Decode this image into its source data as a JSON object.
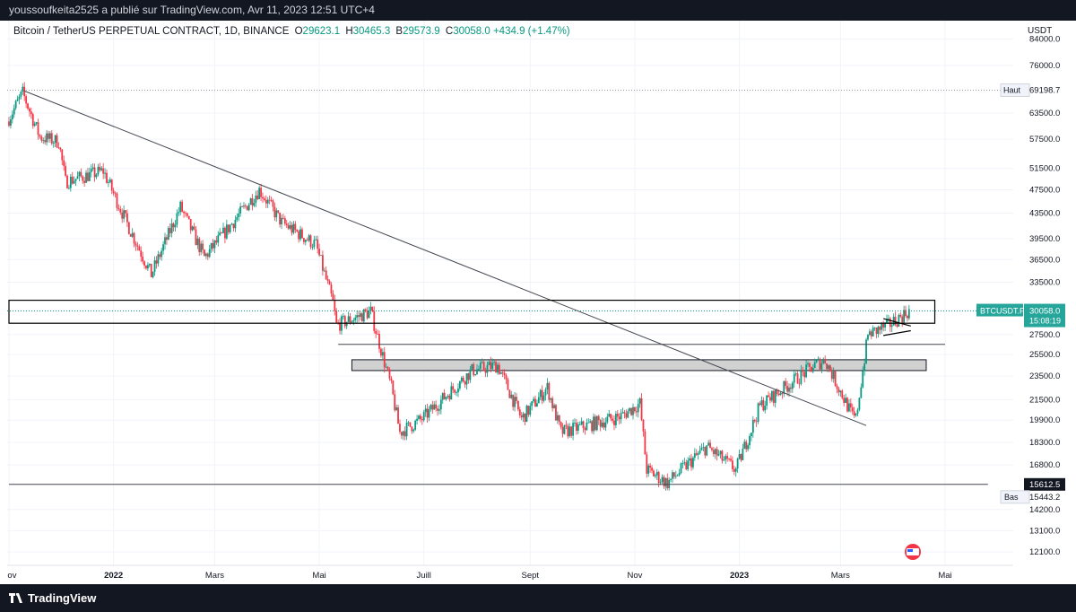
{
  "header": {
    "publisher": "youssoufkeita2525 a publié sur TradingView.com, Avr 11, 2023 12:51 UTC+4"
  },
  "legend": {
    "symbol": "Bitcoin / TetherUS PERPETUAL CONTRACT, 1D, BINANCE",
    "o_label": "O",
    "o": "29623.1",
    "h_label": "H",
    "h": "30465.3",
    "l_label": "B",
    "l": "29573.9",
    "c_label": "C",
    "c": "30058.0",
    "change": "+434.9 (+1.47%)"
  },
  "footer": {
    "brand": "TradingView"
  },
  "chart_data": {
    "type": "candlestick",
    "currency": "USDT",
    "y_scale": "log",
    "ylim": [
      11500,
      90000
    ],
    "y_ticks": [
      "84000.0",
      "76000.0",
      "63500.0",
      "57500.0",
      "51500.0",
      "47500.0",
      "43500.0",
      "39500.0",
      "36500.0",
      "33500.0",
      "27500.0",
      "25500.0",
      "23500.0",
      "21500.0",
      "19900.0",
      "18300.0",
      "16800.0",
      "14200.0",
      "13100.0",
      "12100.0"
    ],
    "x_ticks": [
      {
        "label": "Nov",
        "date": "2021-11-01"
      },
      {
        "label": "2022",
        "date": "2022-01-01"
      },
      {
        "label": "Mars",
        "date": "2022-03-01"
      },
      {
        "label": "Mai",
        "date": "2022-05-01"
      },
      {
        "label": "Juill",
        "date": "2022-07-01"
      },
      {
        "label": "Sept",
        "date": "2022-09-01"
      },
      {
        "label": "Nov",
        "date": "2022-11-01"
      },
      {
        "label": "2023",
        "date": "2023-01-01"
      },
      {
        "label": "Mars",
        "date": "2023-03-01"
      },
      {
        "label": "Mai",
        "date": "2023-05-01"
      }
    ],
    "price_labels": {
      "high": {
        "tag": "Haut",
        "value": "69198.7"
      },
      "current": {
        "tag": "BTCUSDT.P",
        "value": "30058.0",
        "countdown": "15:08:19"
      },
      "line_level": {
        "value": "15612.5"
      },
      "low": {
        "tag": "Bas",
        "value": "15443.2"
      }
    },
    "colors": {
      "up": "#089981",
      "down": "#f23645",
      "grid": "#f0f3fa",
      "text": "#131722",
      "label_bg": "#26a69a"
    },
    "series_anchors": [
      {
        "date": "2021-11-01",
        "close": 61500
      },
      {
        "date": "2021-11-10",
        "close": 68500
      },
      {
        "date": "2021-11-20",
        "close": 58000
      },
      {
        "date": "2021-12-01",
        "close": 57000
      },
      {
        "date": "2021-12-05",
        "close": 49000
      },
      {
        "date": "2021-12-27",
        "close": 51000
      },
      {
        "date": "2022-01-10",
        "close": 41800
      },
      {
        "date": "2022-01-24",
        "close": 34500
      },
      {
        "date": "2022-02-10",
        "close": 44500
      },
      {
        "date": "2022-02-24",
        "close": 36800
      },
      {
        "date": "2022-03-28",
        "close": 47500
      },
      {
        "date": "2022-04-10",
        "close": 42000
      },
      {
        "date": "2022-04-30",
        "close": 38600
      },
      {
        "date": "2022-05-10",
        "close": 31000
      },
      {
        "date": "2022-05-12",
        "close": 28500
      },
      {
        "date": "2022-06-01",
        "close": 30000
      },
      {
        "date": "2022-06-13",
        "close": 22500
      },
      {
        "date": "2022-06-18",
        "close": 19000
      },
      {
        "date": "2022-07-01",
        "close": 20000
      },
      {
        "date": "2022-07-30",
        "close": 24000
      },
      {
        "date": "2022-08-14",
        "close": 24500
      },
      {
        "date": "2022-08-28",
        "close": 20000
      },
      {
        "date": "2022-09-12",
        "close": 22500
      },
      {
        "date": "2022-09-20",
        "close": 19000
      },
      {
        "date": "2022-10-25",
        "close": 20200
      },
      {
        "date": "2022-11-05",
        "close": 21200
      },
      {
        "date": "2022-11-09",
        "close": 16500
      },
      {
        "date": "2022-11-21",
        "close": 15700
      },
      {
        "date": "2022-12-14",
        "close": 18000
      },
      {
        "date": "2022-12-31",
        "close": 16500
      },
      {
        "date": "2023-01-14",
        "close": 21000
      },
      {
        "date": "2023-02-15",
        "close": 24500
      },
      {
        "date": "2023-02-21",
        "close": 25000
      },
      {
        "date": "2023-03-09",
        "close": 20200
      },
      {
        "date": "2023-03-11",
        "close": 20000
      },
      {
        "date": "2023-03-18",
        "close": 27500
      },
      {
        "date": "2023-03-30",
        "close": 28500
      },
      {
        "date": "2023-04-11",
        "close": 30058
      }
    ],
    "annotations": [
      {
        "type": "trendline",
        "from": {
          "date": "2021-11-10",
          "price": 69000
        },
        "to": {
          "date": "2023-03-16",
          "price": 19500
        }
      },
      {
        "type": "rectangle",
        "from": {
          "date": "2021-11-01",
          "price": 31300
        },
        "to": {
          "date": "2023-04-25",
          "price": 28700
        },
        "fill": "none"
      },
      {
        "type": "rectangle",
        "from": {
          "date": "2022-05-20",
          "price": 25000
        },
        "to": {
          "date": "2023-04-20",
          "price": 24000
        },
        "fill": "#d1d1d1"
      },
      {
        "type": "hline",
        "from_date": "2022-05-12",
        "to_date": "2023-05-01",
        "price": 26500
      },
      {
        "type": "hline",
        "from_date": "2021-11-01",
        "to_date": "2023-05-26",
        "price": 15612.5
      },
      {
        "type": "triangle",
        "upper": [
          {
            "date": "2023-03-26",
            "price": 29200
          },
          {
            "date": "2023-04-11",
            "price": 28400
          }
        ],
        "lower": [
          {
            "date": "2023-03-26",
            "price": 27400
          },
          {
            "date": "2023-04-11",
            "price": 27900
          }
        ]
      }
    ]
  }
}
